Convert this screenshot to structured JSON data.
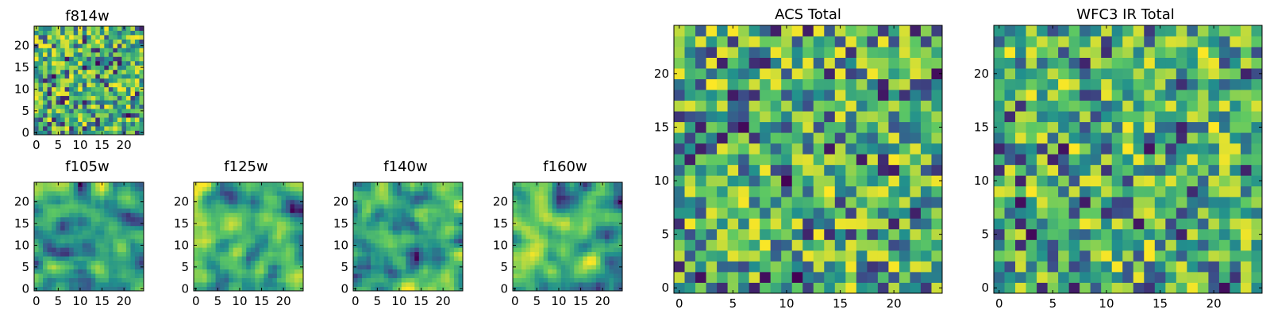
{
  "figure": {
    "colormap": "viridis",
    "palette": [
      "#440154",
      "#3b528b",
      "#21908d",
      "#5dc863",
      "#fde725"
    ],
    "frame_color": "#000000"
  },
  "chart_data": [
    {
      "type": "heatmap",
      "title": "f814w",
      "grid": [
        25,
        25
      ],
      "value_range": [
        0,
        1
      ],
      "xlim": [
        0,
        24
      ],
      "ylim": [
        0,
        24
      ],
      "x_ticks": [
        0,
        5,
        10,
        15,
        20
      ],
      "y_ticks": [
        0,
        5,
        10,
        15,
        20
      ],
      "y_origin": "lower",
      "texture": "noise",
      "seed": 11
    },
    {
      "type": "heatmap",
      "title": "f105w",
      "grid": [
        25,
        25
      ],
      "value_range": [
        0,
        1
      ],
      "xlim": [
        0,
        24
      ],
      "ylim": [
        0,
        24
      ],
      "x_ticks": [
        0,
        5,
        10,
        15,
        20
      ],
      "y_ticks": [
        0,
        5,
        10,
        15,
        20
      ],
      "y_origin": "lower",
      "texture": "smooth",
      "seed": 23
    },
    {
      "type": "heatmap",
      "title": "f125w",
      "grid": [
        25,
        25
      ],
      "value_range": [
        0,
        1
      ],
      "xlim": [
        0,
        24
      ],
      "ylim": [
        0,
        24
      ],
      "x_ticks": [
        0,
        5,
        10,
        15,
        20
      ],
      "y_ticks": [
        0,
        5,
        10,
        15,
        20
      ],
      "y_origin": "lower",
      "texture": "smooth",
      "seed": 37
    },
    {
      "type": "heatmap",
      "title": "f140w",
      "grid": [
        25,
        25
      ],
      "value_range": [
        0,
        1
      ],
      "xlim": [
        0,
        24
      ],
      "ylim": [
        0,
        24
      ],
      "x_ticks": [
        0,
        5,
        10,
        15,
        20
      ],
      "y_ticks": [
        0,
        5,
        10,
        15,
        20
      ],
      "y_origin": "lower",
      "texture": "smooth",
      "seed": 41
    },
    {
      "type": "heatmap",
      "title": "f160w",
      "grid": [
        25,
        25
      ],
      "value_range": [
        0,
        1
      ],
      "xlim": [
        0,
        24
      ],
      "ylim": [
        0,
        24
      ],
      "x_ticks": [
        0,
        5,
        10,
        15,
        20
      ],
      "y_ticks": [
        0,
        5,
        10,
        15,
        20
      ],
      "y_origin": "lower",
      "texture": "smooth",
      "seed": 53
    },
    {
      "type": "heatmap",
      "title": "ACS Total",
      "grid": [
        25,
        25
      ],
      "value_range": [
        0,
        1
      ],
      "xlim": [
        0,
        24
      ],
      "ylim": [
        0,
        24
      ],
      "x_ticks": [
        0,
        5,
        10,
        15,
        20
      ],
      "y_ticks": [
        0,
        5,
        10,
        15,
        20
      ],
      "y_origin": "lower",
      "texture": "noise",
      "seed": 67
    },
    {
      "type": "heatmap",
      "title": "WFC3 IR Total",
      "grid": [
        25,
        25
      ],
      "value_range": [
        0,
        1
      ],
      "xlim": [
        0,
        24
      ],
      "ylim": [
        0,
        24
      ],
      "x_ticks": [
        0,
        5,
        10,
        15,
        20
      ],
      "y_ticks": [
        0,
        5,
        10,
        15,
        20
      ],
      "y_origin": "lower",
      "texture": "noise",
      "seed": 79
    }
  ]
}
